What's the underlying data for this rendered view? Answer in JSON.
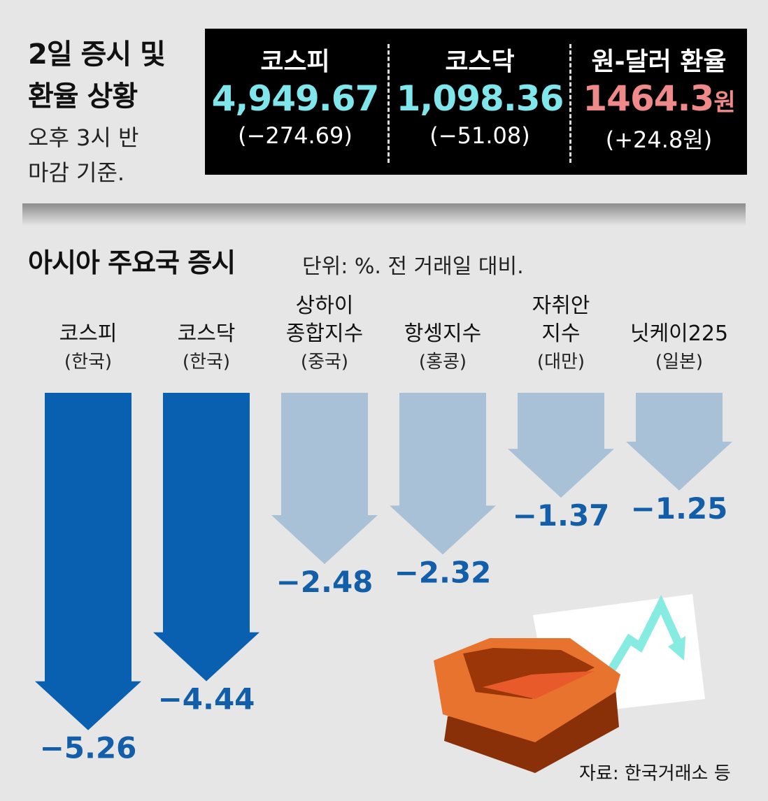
{
  "header": {
    "title_lines": [
      "2일 증시 및",
      "환율 상황"
    ],
    "subtitle_lines": [
      "오후 3시 반",
      "마감 기준."
    ]
  },
  "summary": [
    {
      "label": "코스피",
      "value": "4,949.67",
      "change": "(−274.69)",
      "color": "#7fe6ec"
    },
    {
      "label": "코스닥",
      "value": "1,098.36",
      "change": "(−51.08)",
      "color": "#7fe6ec"
    },
    {
      "label": "원-달러 환율",
      "value": "1464.3",
      "unit": "원",
      "change": "(+24.8원)",
      "color": "#f08a8a"
    }
  ],
  "section": {
    "title": "아시아 주요국 증시",
    "unit": "단위: %. 전 거래일 대비."
  },
  "chart_data": {
    "type": "bar",
    "title": "아시아 주요국 증시",
    "ylabel": "단위: %. 전 거래일 대비.",
    "categories": [
      "코스피",
      "코스닥",
      "상하이 종합지수",
      "항셍지수",
      "자취안 지수",
      "닛케이225"
    ],
    "category_lines": [
      [
        "코스피"
      ],
      [
        "코스닥"
      ],
      [
        "상하이",
        "종합지수"
      ],
      [
        "항셍지수"
      ],
      [
        "자취안",
        "지수"
      ],
      [
        "닛케이225"
      ]
    ],
    "countries": [
      "(한국)",
      "(한국)",
      "(중국)",
      "(홍콩)",
      "(대만)",
      "(일본)"
    ],
    "values": [
      -5.26,
      -4.44,
      -2.48,
      -2.32,
      -1.37,
      -1.25
    ],
    "labels": [
      "−5.26",
      "−4.44",
      "−2.48",
      "−2.32",
      "−1.37",
      "−1.25"
    ],
    "colors": [
      "#0a60b0",
      "#0a60b0",
      "#a8c1d7",
      "#a8c1d7",
      "#a8c1d7",
      "#a8c1d7"
    ],
    "label_color": "#135ea8"
  },
  "source": "자료: 한국거래소 등"
}
